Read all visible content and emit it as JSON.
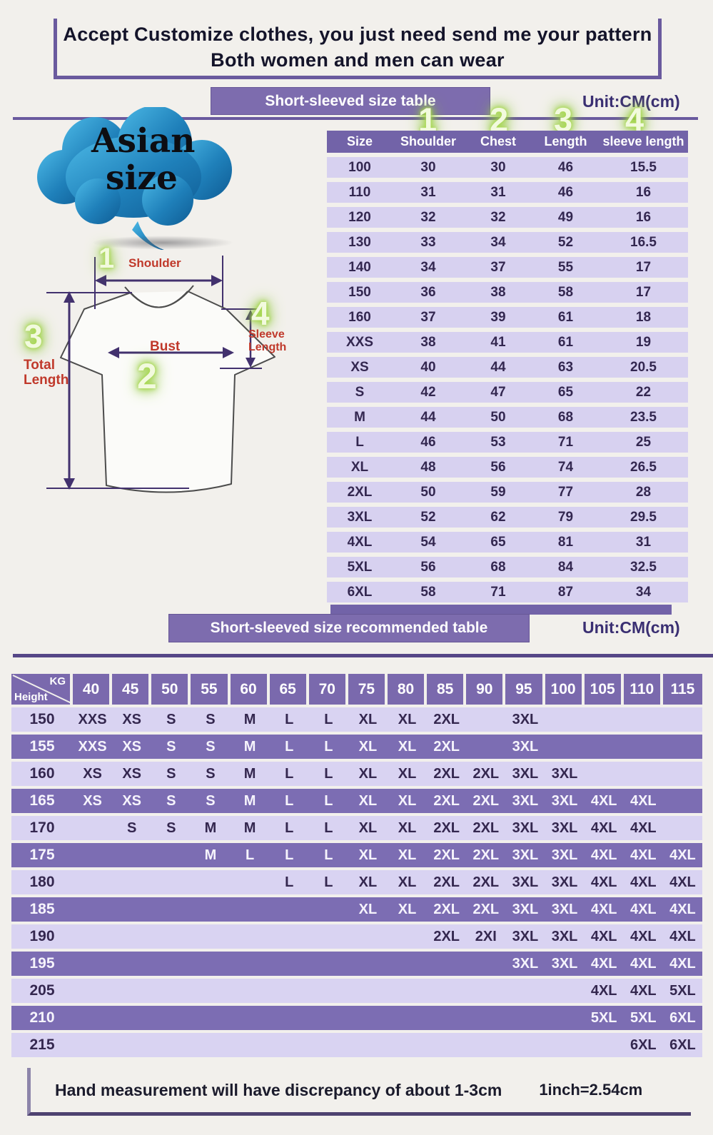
{
  "header": {
    "line1": "Accept Customize clothes, you just need send me your pattern",
    "line2": "Both women and men can wear"
  },
  "badge": {
    "line1": "Asian",
    "line2": "size"
  },
  "diagram": {
    "numbers": [
      "1",
      "2",
      "3",
      "4"
    ],
    "shoulder_label": "Shoulder",
    "bust_label": "Bust",
    "total_label_1": "Total",
    "total_label_2": "Length",
    "sleeve_label_1": "Sleeve",
    "sleeve_label_2": "Length"
  },
  "size_table": {
    "banner": "Short-sleeved size table",
    "unit": "Unit:CM(cm)",
    "col_numbers": [
      "1",
      "2",
      "3",
      "4"
    ],
    "columns": [
      "Size",
      "Shoulder",
      "Chest",
      "Length",
      "sleeve length"
    ],
    "rows": [
      [
        "100",
        "30",
        "30",
        "46",
        "15.5"
      ],
      [
        "110",
        "31",
        "31",
        "46",
        "16"
      ],
      [
        "120",
        "32",
        "32",
        "49",
        "16"
      ],
      [
        "130",
        "33",
        "34",
        "52",
        "16.5"
      ],
      [
        "140",
        "34",
        "37",
        "55",
        "17"
      ],
      [
        "150",
        "36",
        "38",
        "58",
        "17"
      ],
      [
        "160",
        "37",
        "39",
        "61",
        "18"
      ],
      [
        "XXS",
        "38",
        "41",
        "61",
        "19"
      ],
      [
        "XS",
        "40",
        "44",
        "63",
        "20.5"
      ],
      [
        "S",
        "42",
        "47",
        "65",
        "22"
      ],
      [
        "M",
        "44",
        "50",
        "68",
        "23.5"
      ],
      [
        "L",
        "46",
        "53",
        "71",
        "25"
      ],
      [
        "XL",
        "48",
        "56",
        "74",
        "26.5"
      ],
      [
        "2XL",
        "50",
        "59",
        "77",
        "28"
      ],
      [
        "3XL",
        "52",
        "62",
        "79",
        "29.5"
      ],
      [
        "4XL",
        "54",
        "65",
        "81",
        "31"
      ],
      [
        "5XL",
        "56",
        "68",
        "84",
        "32.5"
      ],
      [
        "6XL",
        "58",
        "71",
        "87",
        "34"
      ]
    ]
  },
  "recommend_table": {
    "banner": "Short-sleeved size recommended table",
    "unit": "Unit:CM(cm)",
    "corner_top": "KG",
    "corner_bottom": "Height",
    "weights": [
      "40",
      "45",
      "50",
      "55",
      "60",
      "65",
      "70",
      "75",
      "80",
      "85",
      "90",
      "95",
      "100",
      "105",
      "110",
      "115"
    ],
    "rows": [
      {
        "height": "150",
        "cells": [
          "XXS",
          "XS",
          "S",
          "S",
          "M",
          "L",
          "L",
          "XL",
          "XL",
          "2XL",
          "",
          "3XL",
          "",
          "",
          "",
          ""
        ]
      },
      {
        "height": "155",
        "cells": [
          "XXS",
          "XS",
          "S",
          "S",
          "M",
          "L",
          "L",
          "XL",
          "XL",
          "2XL",
          "",
          "3XL",
          "",
          "",
          "",
          ""
        ]
      },
      {
        "height": "160",
        "cells": [
          "XS",
          "XS",
          "S",
          "S",
          "M",
          "L",
          "L",
          "XL",
          "XL",
          "2XL",
          "2XL",
          "3XL",
          "3XL",
          "",
          "",
          ""
        ]
      },
      {
        "height": "165",
        "cells": [
          "XS",
          "XS",
          "S",
          "S",
          "M",
          "L",
          "L",
          "XL",
          "XL",
          "2XL",
          "2XL",
          "3XL",
          "3XL",
          "4XL",
          "4XL",
          ""
        ]
      },
      {
        "height": "170",
        "cells": [
          "",
          "S",
          "S",
          "M",
          "M",
          "L",
          "L",
          "XL",
          "XL",
          "2XL",
          "2XL",
          "3XL",
          "3XL",
          "4XL",
          "4XL",
          ""
        ]
      },
      {
        "height": "175",
        "cells": [
          "",
          "",
          "",
          "M",
          "L",
          "L",
          "L",
          "XL",
          "XL",
          "2XL",
          "2XL",
          "3XL",
          "3XL",
          "4XL",
          "4XL",
          "4XL"
        ]
      },
      {
        "height": "180",
        "cells": [
          "",
          "",
          "",
          "",
          "",
          "L",
          "L",
          "XL",
          "XL",
          "2XL",
          "2XL",
          "3XL",
          "3XL",
          "4XL",
          "4XL",
          "4XL"
        ]
      },
      {
        "height": "185",
        "cells": [
          "",
          "",
          "",
          "",
          "",
          "",
          "",
          "XL",
          "XL",
          "2XL",
          "2XL",
          "3XL",
          "3XL",
          "4XL",
          "4XL",
          "4XL"
        ]
      },
      {
        "height": "190",
        "cells": [
          "",
          "",
          "",
          "",
          "",
          "",
          "",
          "",
          "",
          "2XL",
          "2XI",
          "3XL",
          "3XL",
          "4XL",
          "4XL",
          "4XL"
        ]
      },
      {
        "height": "195",
        "cells": [
          "",
          "",
          "",
          "",
          "",
          "",
          "",
          "",
          "",
          "",
          "",
          "3XL",
          "3XL",
          "4XL",
          "4XL",
          "4XL"
        ]
      },
      {
        "height": "205",
        "cells": [
          "",
          "",
          "",
          "",
          "",
          "",
          "",
          "",
          "",
          "",
          "",
          "",
          "",
          "4XL",
          "4XL",
          "5XL"
        ]
      },
      {
        "height": "210",
        "cells": [
          "",
          "",
          "",
          "",
          "",
          "",
          "",
          "",
          "",
          "",
          "",
          "",
          "",
          "5XL",
          "5XL",
          "6XL"
        ]
      },
      {
        "height": "215",
        "cells": [
          "",
          "",
          "",
          "",
          "",
          "",
          "",
          "",
          "",
          "",
          "",
          "",
          "",
          "",
          "6XL",
          "6XL"
        ]
      }
    ]
  },
  "footer": {
    "note": "Hand measurement will have discrepancy of about  1-3cm",
    "conversion": "1inch=2.54cm"
  }
}
